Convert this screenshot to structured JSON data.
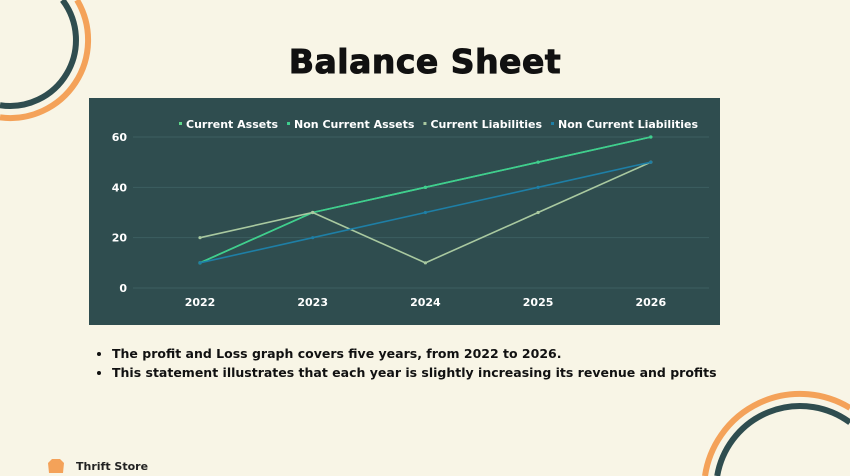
{
  "title": "Balance Sheet",
  "bullets": [
    "The profit and Loss graph covers five years, from 2022 to 2026.",
    "This statement illustrates that each year is slightly increasing its revenue and profits"
  ],
  "footer": {
    "brand": "Thrift Store",
    "icon": "sweater-icon"
  },
  "colors": {
    "background": "#f8f5e6",
    "chart_bg": "#2f4d4f",
    "deco_dark": "#2f4d4f",
    "deco_orange": "#f4a259"
  },
  "chart_data": {
    "type": "line",
    "categories": [
      "2022",
      "2023",
      "2024",
      "2025",
      "2026"
    ],
    "ylim": [
      0,
      60
    ],
    "yticks": [
      0,
      20,
      40,
      60
    ],
    "grid": true,
    "legend": "top",
    "series": [
      {
        "name": "Current Assets",
        "values": [
          10,
          30,
          40,
          50,
          60
        ],
        "color": "#5fd88a"
      },
      {
        "name": "Non Current Assets",
        "values": [
          10,
          30,
          40,
          50,
          60
        ],
        "color": "#3ecf8e"
      },
      {
        "name": "Current Liabilities",
        "values": [
          20,
          30,
          10,
          30,
          50
        ],
        "color": "#a9c9a0"
      },
      {
        "name": "Non Current Liabilities",
        "values": [
          10,
          20,
          30,
          40,
          50
        ],
        "color": "#1e7fa6"
      }
    ]
  }
}
